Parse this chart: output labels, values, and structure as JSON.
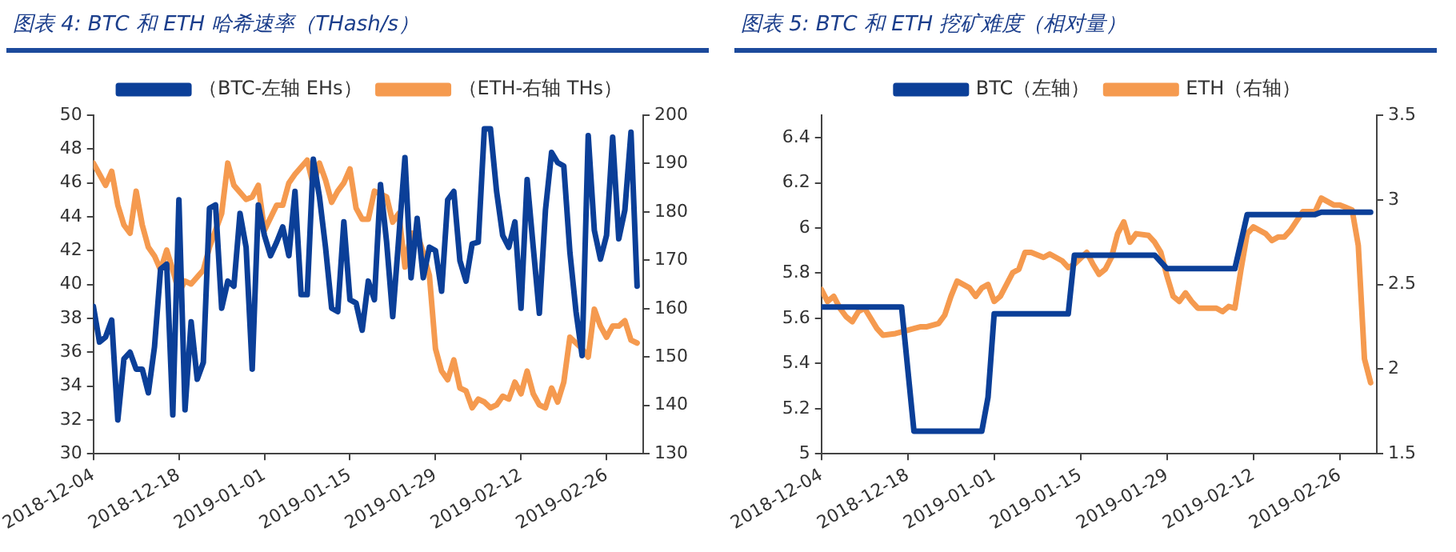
{
  "chart_data": [
    {
      "type": "line",
      "title": "图表 4:  BTC 和 ETH 哈希速率（THash/s）",
      "legend": "top",
      "marker": "none",
      "xlim": [
        "2018-12-04",
        "2019-03-04"
      ],
      "xticks": [
        "2018-12-04",
        "2018-12-18",
        "2019-01-01",
        "2019-01-15",
        "2019-01-29",
        "2019-02-12",
        "2019-02-26"
      ],
      "ylim": [
        30,
        50
      ],
      "yticks": [
        30,
        32,
        34,
        36,
        38,
        40,
        42,
        44,
        46,
        48,
        50
      ],
      "y2lim": [
        130,
        200
      ],
      "y2ticks": [
        130,
        140,
        150,
        160,
        170,
        180,
        190,
        200
      ],
      "series": [
        {
          "name": "（BTC-左轴 EHs）",
          "color": "#0b3f98",
          "x": [
            "2018-12-04",
            "2018-12-05",
            "2018-12-06",
            "2018-12-07",
            "2018-12-08",
            "2018-12-09",
            "2018-12-10",
            "2018-12-11",
            "2018-12-12",
            "2018-12-13",
            "2018-12-14",
            "2018-12-15",
            "2018-12-16",
            "2018-12-17",
            "2018-12-18",
            "2018-12-19",
            "2018-12-20",
            "2018-12-21",
            "2018-12-22",
            "2018-12-23",
            "2018-12-24",
            "2018-12-25",
            "2018-12-26",
            "2018-12-27",
            "2018-12-28",
            "2018-12-29",
            "2018-12-30",
            "2018-12-31",
            "2019-01-01",
            "2019-01-02",
            "2019-01-03",
            "2019-01-04",
            "2019-01-05",
            "2019-01-06",
            "2019-01-07",
            "2019-01-08",
            "2019-01-09",
            "2019-01-10",
            "2019-01-11",
            "2019-01-12",
            "2019-01-13",
            "2019-01-14",
            "2019-01-15",
            "2019-01-16",
            "2019-01-17",
            "2019-01-18",
            "2019-01-19",
            "2019-01-20",
            "2019-01-21",
            "2019-01-22",
            "2019-01-24",
            "2019-01-25",
            "2019-01-26",
            "2019-01-27",
            "2019-01-28",
            "2019-01-29",
            "2019-01-30",
            "2019-01-31",
            "2019-02-01",
            "2019-02-02",
            "2019-02-03",
            "2019-02-04",
            "2019-02-05",
            "2019-02-06",
            "2019-02-07",
            "2019-02-08",
            "2019-02-09",
            "2019-02-10",
            "2019-02-11",
            "2019-02-12",
            "2019-02-13",
            "2019-02-14",
            "2019-02-15",
            "2019-02-16",
            "2019-02-17",
            "2019-02-18",
            "2019-02-19",
            "2019-02-20",
            "2019-02-21",
            "2019-02-22",
            "2019-02-23",
            "2019-02-24",
            "2019-02-25",
            "2019-02-26",
            "2019-02-27",
            "2019-02-28",
            "2019-03-01",
            "2019-03-02",
            "2019-03-03"
          ],
          "values": [
            38.7,
            36.6,
            36.9,
            37.9,
            32,
            35.6,
            36,
            35,
            35,
            33.6,
            36.3,
            40.9,
            41.2,
            32.3,
            45,
            32.6,
            37.8,
            34.4,
            35.4,
            44.5,
            44.7,
            38.6,
            40.2,
            39.9,
            44.2,
            42.2,
            35,
            44.7,
            42.9,
            41.7,
            42.5,
            43.4,
            41.7,
            45.5,
            39.4,
            39.4,
            47.4,
            45.2,
            42.2,
            38.6,
            38.4,
            43.7,
            39.1,
            38.9,
            37.3,
            40.2,
            39.1,
            45.9,
            42.5,
            38.1,
            47.5,
            40.4,
            43.9,
            40.4,
            42.2,
            42,
            39.6,
            45,
            45.5,
            41.4,
            40.2,
            42.4,
            42.5,
            49.2,
            49.2,
            45.5,
            42.9,
            42.2,
            43.7,
            38.6,
            46.2,
            42.2,
            38.3,
            44.4,
            47.8,
            47.2,
            47,
            41.9,
            38.4,
            35.8,
            48.8,
            43.2,
            41.5,
            42.9,
            48.7,
            42.7,
            44.4,
            49,
            39.9
          ]
        },
        {
          "name": "（ETH-右轴 THs）",
          "color": "#f59a4f",
          "axis": "y2",
          "x": [
            "2018-12-04",
            "2018-12-05",
            "2018-12-06",
            "2018-12-07",
            "2018-12-08",
            "2018-12-09",
            "2018-12-10",
            "2018-12-11",
            "2018-12-12",
            "2018-12-13",
            "2018-12-14",
            "2018-12-15",
            "2018-12-16",
            "2018-12-17",
            "2018-12-18",
            "2018-12-19",
            "2018-12-20",
            "2018-12-22",
            "2018-12-23",
            "2018-12-25",
            "2018-12-26",
            "2018-12-27",
            "2018-12-29",
            "2018-12-30",
            "2018-12-31",
            "2019-01-01",
            "2019-01-03",
            "2019-01-04",
            "2019-01-05",
            "2019-01-06",
            "2019-01-08",
            "2019-01-09",
            "2019-01-10",
            "2019-01-11",
            "2019-01-12",
            "2019-01-13",
            "2019-01-14",
            "2019-01-15",
            "2019-01-16",
            "2019-01-17",
            "2019-01-18",
            "2019-01-19",
            "2019-01-21",
            "2019-01-22",
            "2019-01-23",
            "2019-01-24",
            "2019-01-25",
            "2019-01-26",
            "2019-01-27",
            "2019-01-28",
            "2019-01-29",
            "2019-01-30",
            "2019-01-31",
            "2019-02-01",
            "2019-02-02",
            "2019-02-03",
            "2019-02-04",
            "2019-02-05",
            "2019-02-06",
            "2019-02-07",
            "2019-02-08",
            "2019-02-09",
            "2019-02-10",
            "2019-02-11",
            "2019-02-12",
            "2019-02-13",
            "2019-02-14",
            "2019-02-15",
            "2019-02-16",
            "2019-02-17",
            "2019-02-18",
            "2019-02-19",
            "2019-02-20",
            "2019-02-21",
            "2019-02-22",
            "2019-02-23",
            "2019-02-24",
            "2019-02-25",
            "2019-02-26",
            "2019-02-27",
            "2019-02-28",
            "2019-03-01",
            "2019-03-02",
            "2019-03-03"
          ],
          "values": [
            190.1,
            187.8,
            185.5,
            188.4,
            181.4,
            177.3,
            175.6,
            184.3,
            177.3,
            172.7,
            170.9,
            168,
            172.1,
            168,
            163.4,
            165.7,
            165.1,
            168,
            172.7,
            179.7,
            190.1,
            185.5,
            182.6,
            183.1,
            185.5,
            176.2,
            181.4,
            181.4,
            186,
            187.8,
            190.7,
            185.5,
            190.1,
            186.6,
            182,
            184.3,
            186,
            188.9,
            180.8,
            178.5,
            178.5,
            184.3,
            183.1,
            177.9,
            179.7,
            168.6,
            175.6,
            175.6,
            171.5,
            166.9,
            151.7,
            147.1,
            145.3,
            149.4,
            143.6,
            143,
            139.5,
            141.3,
            140.7,
            139.5,
            140.1,
            141.9,
            141.3,
            144.8,
            142.4,
            147.1,
            142.4,
            140.1,
            139.5,
            143.6,
            140.7,
            144.8,
            154.1,
            152.9,
            151.7,
            150,
            159.9,
            156.4,
            154.1,
            156.4,
            156.4,
            157.5,
            153.5,
            152.9
          ]
        }
      ]
    },
    {
      "type": "line",
      "title": "图表 5:  BTC 和 ETH 挖矿难度（相对量）",
      "legend": "top",
      "marker": "none",
      "xlim": [
        "2018-12-04",
        "2019-03-04"
      ],
      "xticks": [
        "2018-12-04",
        "2018-12-18",
        "2019-01-01",
        "2019-01-15",
        "2019-01-29",
        "2019-02-12",
        "2019-02-26"
      ],
      "ylim": [
        5,
        6.5
      ],
      "yticks": [
        5,
        5.2,
        5.4,
        5.6,
        5.8,
        6,
        6.2,
        6.4
      ],
      "y2lim": [
        1.5,
        3.5
      ],
      "y2ticks": [
        1.5,
        2,
        2.5,
        3,
        3.5
      ],
      "series": [
        {
          "name": "BTC（左轴）",
          "color": "#0b3f98",
          "x": [
            "2018-12-04",
            "2018-12-17",
            "2018-12-19",
            "2018-12-30",
            "2018-12-31",
            "2019-01-01",
            "2019-01-13",
            "2019-01-14",
            "2019-01-27",
            "2019-01-29",
            "2019-02-09",
            "2019-02-11",
            "2019-02-22",
            "2019-02-23",
            "2019-03-03"
          ],
          "values": [
            5.65,
            5.65,
            5.1,
            5.1,
            5.25,
            5.62,
            5.62,
            5.88,
            5.88,
            5.82,
            5.82,
            6.06,
            6.06,
            6.07,
            6.07
          ]
        },
        {
          "name": "ETH（右轴）",
          "color": "#f59a4f",
          "axis": "y2",
          "x": [
            "2018-12-04",
            "2018-12-05",
            "2018-12-06",
            "2018-12-07",
            "2018-12-08",
            "2018-12-09",
            "2018-12-10",
            "2018-12-11",
            "2018-12-13",
            "2018-12-14",
            "2018-12-16",
            "2018-12-17",
            "2018-12-19",
            "2018-12-20",
            "2018-12-21",
            "2018-12-23",
            "2018-12-24",
            "2018-12-25",
            "2018-12-26",
            "2018-12-28",
            "2018-12-29",
            "2018-12-30",
            "2018-12-31",
            "2019-01-01",
            "2019-01-02",
            "2019-01-04",
            "2019-01-05",
            "2019-01-06",
            "2019-01-07",
            "2019-01-09",
            "2019-01-10",
            "2019-01-11",
            "2019-01-12",
            "2019-01-13",
            "2019-01-14",
            "2019-01-16",
            "2019-01-17",
            "2019-01-18",
            "2019-01-19",
            "2019-01-20",
            "2019-01-21",
            "2019-01-22",
            "2019-01-23",
            "2019-01-24",
            "2019-01-26",
            "2019-01-27",
            "2019-01-28",
            "2019-01-29",
            "2019-01-30",
            "2019-01-31",
            "2019-02-01",
            "2019-02-02",
            "2019-02-03",
            "2019-02-04",
            "2019-02-06",
            "2019-02-07",
            "2019-02-08",
            "2019-02-09",
            "2019-02-10",
            "2019-02-11",
            "2019-02-12",
            "2019-02-14",
            "2019-02-15",
            "2019-02-16",
            "2019-02-17",
            "2019-02-18",
            "2019-02-20",
            "2019-02-21",
            "2019-02-22",
            "2019-02-23",
            "2019-02-24",
            "2019-02-25",
            "2019-02-26",
            "2019-02-28",
            "2019-03-01",
            "2019-03-02",
            "2019-03-03"
          ],
          "values": [
            2.47,
            2.4,
            2.43,
            2.36,
            2.31,
            2.28,
            2.34,
            2.36,
            2.24,
            2.2,
            2.21,
            2.22,
            2.24,
            2.25,
            2.25,
            2.27,
            2.32,
            2.43,
            2.52,
            2.48,
            2.43,
            2.48,
            2.5,
            2.4,
            2.43,
            2.57,
            2.59,
            2.69,
            2.69,
            2.66,
            2.68,
            2.66,
            2.64,
            2.6,
            2.62,
            2.69,
            2.62,
            2.56,
            2.59,
            2.66,
            2.8,
            2.87,
            2.75,
            2.8,
            2.79,
            2.75,
            2.69,
            2.55,
            2.43,
            2.4,
            2.45,
            2.4,
            2.36,
            2.36,
            2.36,
            2.34,
            2.37,
            2.36,
            2.59,
            2.8,
            2.84,
            2.8,
            2.76,
            2.78,
            2.78,
            2.82,
            2.93,
            2.93,
            2.93,
            3.01,
            2.99,
            2.97,
            2.97,
            2.94,
            2.73,
            2.06,
            1.92
          ]
        }
      ]
    }
  ]
}
